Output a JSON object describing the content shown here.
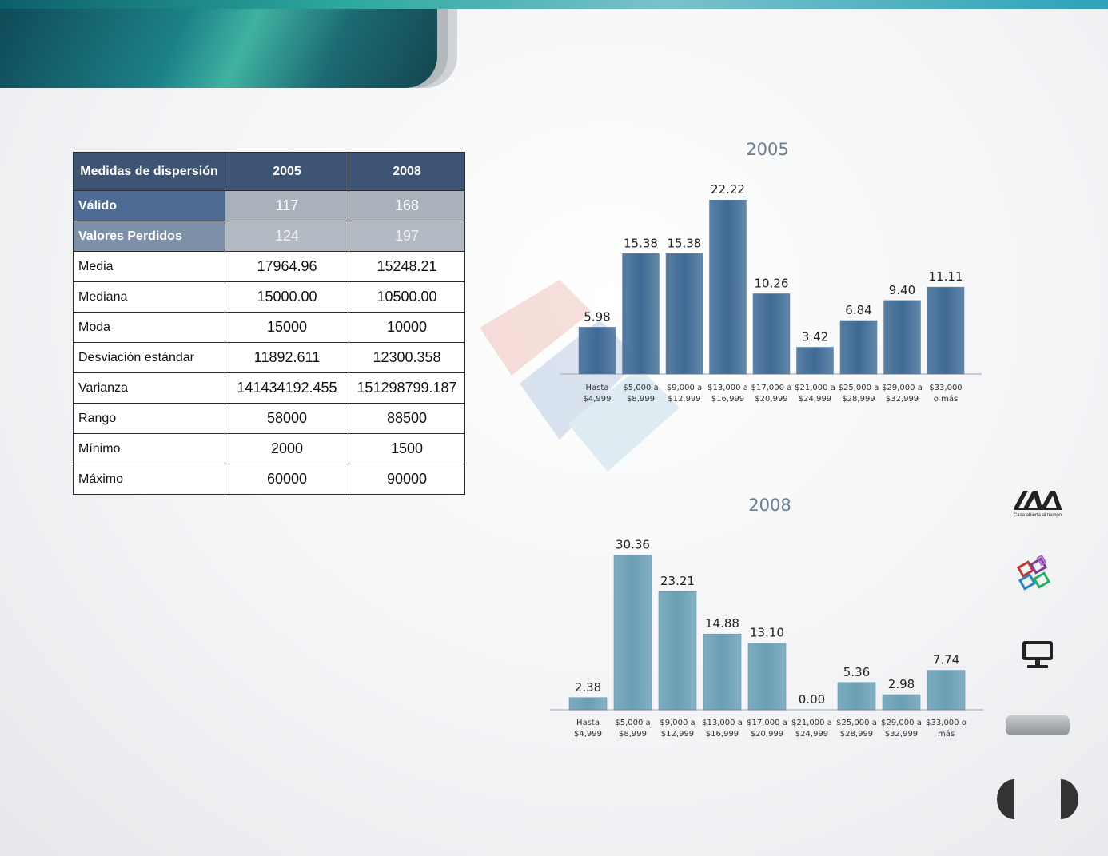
{
  "table": {
    "headers": [
      "Medidas  de dispersión",
      "2005",
      "2008"
    ],
    "rows": [
      {
        "label": "Válido",
        "v2005": "117",
        "v2008": "168"
      },
      {
        "label": "Valores Perdidos",
        "v2005": "124",
        "v2008": "197"
      },
      {
        "label": "Media",
        "v2005": "17964.96",
        "v2008": "15248.21"
      },
      {
        "label": "Mediana",
        "v2005": "15000.00",
        "v2008": "10500.00"
      },
      {
        "label": "Moda",
        "v2005": "15000",
        "v2008": "10000"
      },
      {
        "label": "Desviación  estándar",
        "v2005": "11892.611",
        "v2008": "12300.358"
      },
      {
        "label": "Varianza",
        "v2005": "141434192.455",
        "v2008": "151298799.187"
      },
      {
        "label": "Rango",
        "v2005": "58000",
        "v2008": "88500"
      },
      {
        "label": "Mínimo",
        "v2005": "2000",
        "v2008": "1500"
      },
      {
        "label": "Máximo",
        "v2005": "60000",
        "v2008": "90000"
      }
    ]
  },
  "chart_data": [
    {
      "type": "bar",
      "title": "2005",
      "categories": [
        [
          "Hasta",
          "$4,999"
        ],
        [
          "$5,000 a",
          "$8,999"
        ],
        [
          "$9,000 a",
          "$12,999"
        ],
        [
          "$13,000 a",
          "$16,999"
        ],
        [
          "$17,000 a",
          "$20,999"
        ],
        [
          "$21,000 a",
          "$24,999"
        ],
        [
          "$25,000 a",
          "$28,999"
        ],
        [
          "$29,000 a",
          "$32,999"
        ],
        [
          "$33,000",
          "o más"
        ]
      ],
      "values": [
        5.98,
        15.38,
        15.38,
        22.22,
        10.26,
        3.42,
        6.84,
        9.4,
        11.11
      ],
      "labels": [
        "5.98",
        "15.38",
        "15.38",
        "22.22",
        "10.26",
        "3.42",
        "6.84",
        "9.40",
        "11.11"
      ],
      "bar_color": "#3e6a95"
    },
    {
      "type": "bar",
      "title": "2008",
      "categories": [
        [
          "Hasta",
          "$4,999"
        ],
        [
          "$5,000 a",
          "$8,999"
        ],
        [
          "$9,000 a",
          "$12,999"
        ],
        [
          "$13,000 a",
          "$16,999"
        ],
        [
          "$17,000 a",
          "$20,999"
        ],
        [
          "$21,000 a",
          "$24,999"
        ],
        [
          "$25,000 a",
          "$28,999"
        ],
        [
          "$29,000 a",
          "$32,999"
        ],
        [
          "$33,000 o",
          "más"
        ]
      ],
      "values": [
        2.38,
        30.36,
        23.21,
        14.88,
        13.1,
        0.0,
        5.36,
        2.98,
        7.74
      ],
      "labels": [
        "2.38",
        "30.36",
        "23.21",
        "14.88",
        "13.10",
        "0.00",
        "5.36",
        "2.98",
        "7.74"
      ],
      "bar_color": "#6a9fb5"
    }
  ],
  "sidebar": {
    "logo_text": "Casa abierta al tiempo"
  },
  "colors": {
    "header": "#3d5475",
    "accent": "#1c8088"
  }
}
